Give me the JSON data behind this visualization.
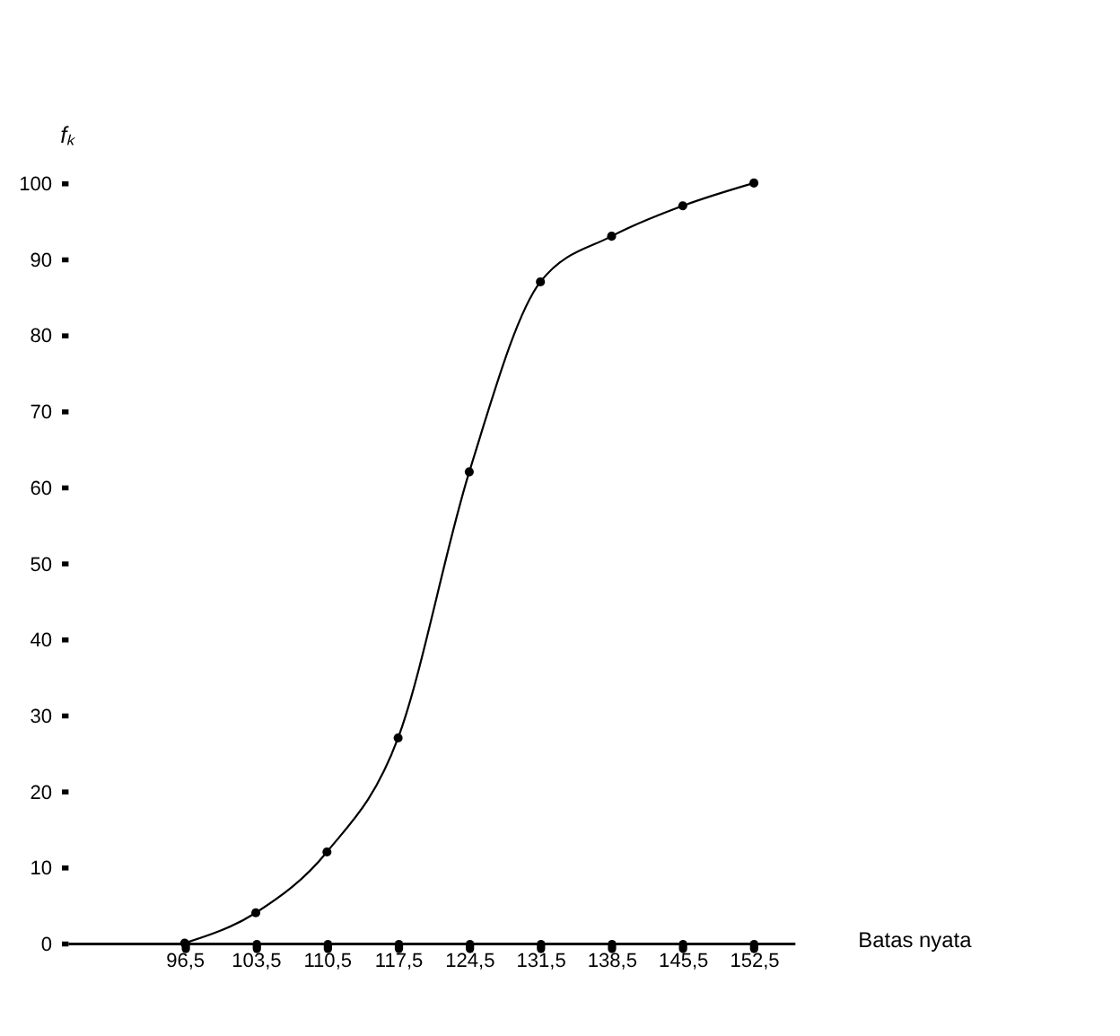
{
  "chart_data": {
    "type": "line",
    "xlabel": "Batas nyata",
    "ylabel": "fₖ",
    "x": [
      96.5,
      103.5,
      110.5,
      117.5,
      124.5,
      131.5,
      138.5,
      145.5,
      152.5
    ],
    "series": [
      {
        "color": "#000000",
        "values": [
          0,
          4,
          12,
          27,
          62,
          87,
          93,
          97,
          100
        ]
      }
    ],
    "xlim": [
      85,
      156.5
    ],
    "xticks": [
      {
        "value": 96.5,
        "label": "96,5"
      },
      {
        "value": 103.5,
        "label": "103,5"
      },
      {
        "value": 110.5,
        "label": "110,5"
      },
      {
        "value": 117.5,
        "label": "117,5"
      },
      {
        "value": 124.5,
        "label": "124,5"
      },
      {
        "value": 131.5,
        "label": "131,5"
      },
      {
        "value": 138.5,
        "label": "138,5"
      },
      {
        "value": 145.5,
        "label": "145,5"
      },
      {
        "value": 152.5,
        "label": "152,5"
      }
    ],
    "ylim": [
      0,
      100
    ],
    "yticks": [
      0,
      10,
      20,
      30,
      40,
      50,
      60,
      70,
      80,
      90,
      100
    ],
    "grid": false,
    "legend": false,
    "marker": "circle",
    "line_style": "solid"
  }
}
